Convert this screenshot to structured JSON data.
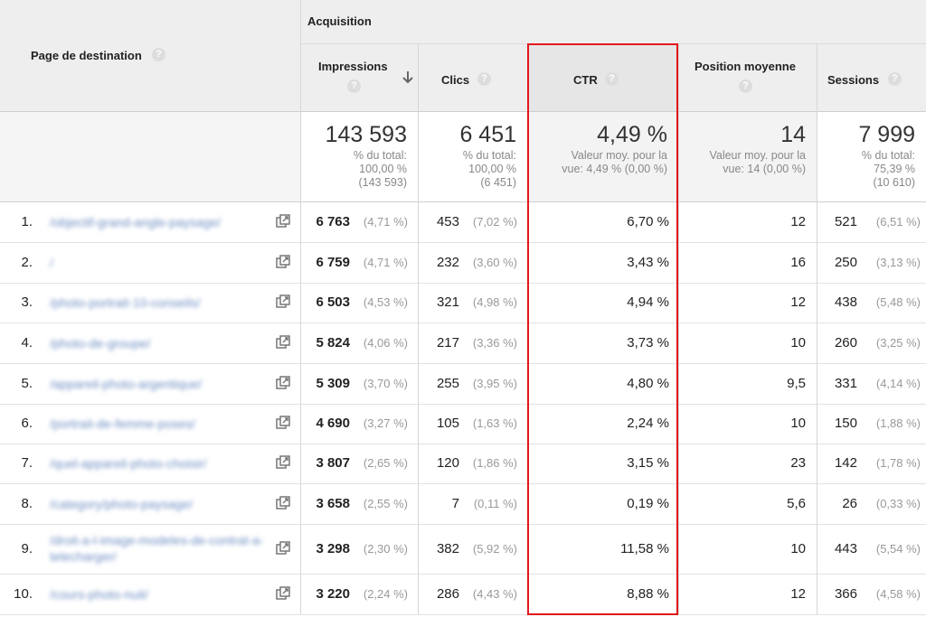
{
  "header": {
    "first_column": "Page de destination",
    "group": "Acquisition",
    "columns": [
      "Impressions",
      "Clics",
      "CTR",
      "Position moyenne",
      "Sessions"
    ]
  },
  "totals": [
    {
      "value": "143 593",
      "note": [
        "% du total:",
        "100,00 %",
        "(143 593)"
      ]
    },
    {
      "value": "6 451",
      "note": [
        "% du total:",
        "100,00 %",
        "(6 451)"
      ]
    },
    {
      "value": "4,49 %",
      "note": [
        "Valeur moy. pour la",
        "vue: 4,49 % (0,00 %)"
      ]
    },
    {
      "value": "14",
      "note": [
        "Valeur moy. pour la",
        "vue: 14 (0,00 %)"
      ]
    },
    {
      "value": "7 999",
      "note": [
        "% du total:",
        "75,39 %",
        "(10 610)"
      ]
    }
  ],
  "rows": [
    [
      "1.",
      "/objectif-grand-angle-paysage/",
      "6 763",
      "(4,71 %)",
      "453",
      "(7,02 %)",
      "6,70 %",
      "12",
      "521",
      "(6,51 %)"
    ],
    [
      "2.",
      "/",
      "6 759",
      "(4,71 %)",
      "232",
      "(3,60 %)",
      "3,43 %",
      "16",
      "250",
      "(3,13 %)"
    ],
    [
      "3.",
      "/photo-portrait-10-conseils/",
      "6 503",
      "(4,53 %)",
      "321",
      "(4,98 %)",
      "4,94 %",
      "12",
      "438",
      "(5,48 %)"
    ],
    [
      "4.",
      "/photo-de-groupe/",
      "5 824",
      "(4,06 %)",
      "217",
      "(3,36 %)",
      "3,73 %",
      "10",
      "260",
      "(3,25 %)"
    ],
    [
      "5.",
      "/appareil-photo-argentique/",
      "5 309",
      "(3,70 %)",
      "255",
      "(3,95 %)",
      "4,80 %",
      "9,5",
      "331",
      "(4,14 %)"
    ],
    [
      "6.",
      "/portrait-de-femme-poses/",
      "4 690",
      "(3,27 %)",
      "105",
      "(1,63 %)",
      "2,24 %",
      "10",
      "150",
      "(1,88 %)"
    ],
    [
      "7.",
      "/quel-appareil-photo-choisir/",
      "3 807",
      "(2,65 %)",
      "120",
      "(1,86 %)",
      "3,15 %",
      "23",
      "142",
      "(1,78 %)"
    ],
    [
      "8.",
      "/category/photo-paysage/",
      "3 658",
      "(2,55 %)",
      "7",
      "(0,11 %)",
      "0,19 %",
      "5,6",
      "26",
      "(0,33 %)"
    ],
    [
      "9.",
      "/droit-a-l-image-modeles-de-contrat-a-telecharger/",
      "3 298",
      "(2,30 %)",
      "382",
      "(5,92 %)",
      "11,58 %",
      "10",
      "443",
      "(5,54 %)"
    ],
    [
      "10.",
      "/cours-photo-nuit/",
      "3 220",
      "(2,24 %)",
      "286",
      "(4,43 %)",
      "8,88 %",
      "12",
      "366",
      "(4,58 %)"
    ]
  ]
}
